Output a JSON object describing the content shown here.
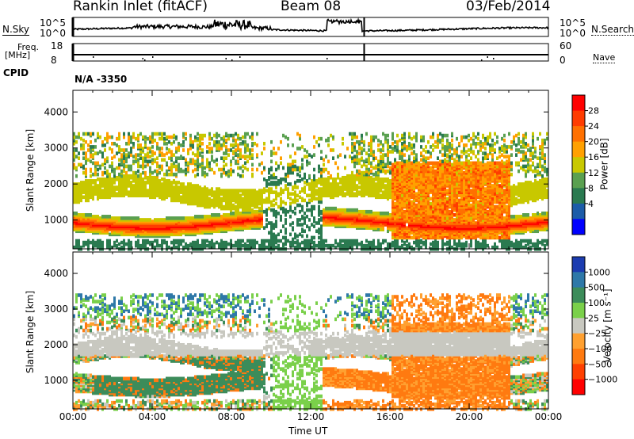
{
  "header": {
    "station": "Rankin Inlet (fitACF)",
    "beam": "Beam 08",
    "date": "03/Feb/2014"
  },
  "top_panels": {
    "nsky_label": "N.Sky",
    "nsearch_label": "N.Search",
    "noise_ticks": [
      "10^5",
      "10^0"
    ],
    "freq_label_1": "Freq.",
    "freq_label_2": "[MHz]",
    "freq_ticks": [
      "18",
      "8"
    ],
    "nave_label": "Nave",
    "nave_ticks": [
      "60",
      "0"
    ],
    "cpid_label": "CPID",
    "cpid_value": "N/A  -3350"
  },
  "chart_data": [
    {
      "type": "heatmap",
      "name": "power",
      "ylabel": "Slant Range [km]",
      "ylim": [
        200,
        4600
      ],
      "yticks": [
        1000,
        2000,
        3000,
        4000
      ],
      "xlim": [
        0,
        24
      ],
      "colorbar": {
        "label": "Power [dB]",
        "ticks": [
          "28",
          "24",
          "20",
          "16",
          "12",
          "8",
          "4"
        ],
        "colors": [
          "#ff0000",
          "#ff3c00",
          "#ff7000",
          "#ffa000",
          "#c8c800",
          "#5aa050",
          "#2a7a50",
          "#1c5ca8",
          "#0000ff"
        ]
      }
    },
    {
      "type": "heatmap",
      "name": "velocity",
      "ylabel": "Slant Range [km]",
      "ylim": [
        200,
        4600
      ],
      "yticks": [
        1000,
        2000,
        3000,
        4000
      ],
      "xlim": [
        0,
        24
      ],
      "xticks": [
        "00:00",
        "04:00",
        "08:00",
        "12:00",
        "16:00",
        "20:00",
        "00:00"
      ],
      "xlabel": "Time UT",
      "colorbar": {
        "label": "Velocity [m s⁻¹]",
        "ticks": [
          "1000",
          "500",
          "100",
          "25",
          "−25",
          "−100",
          "−500",
          "−1000"
        ],
        "colors": [
          "#1c3cb0",
          "#2e78a8",
          "#3c8c5a",
          "#7ad04a",
          "#c8c8c0",
          "#ffa030",
          "#ff7a10",
          "#ff4000",
          "#ff0000"
        ]
      }
    }
  ]
}
